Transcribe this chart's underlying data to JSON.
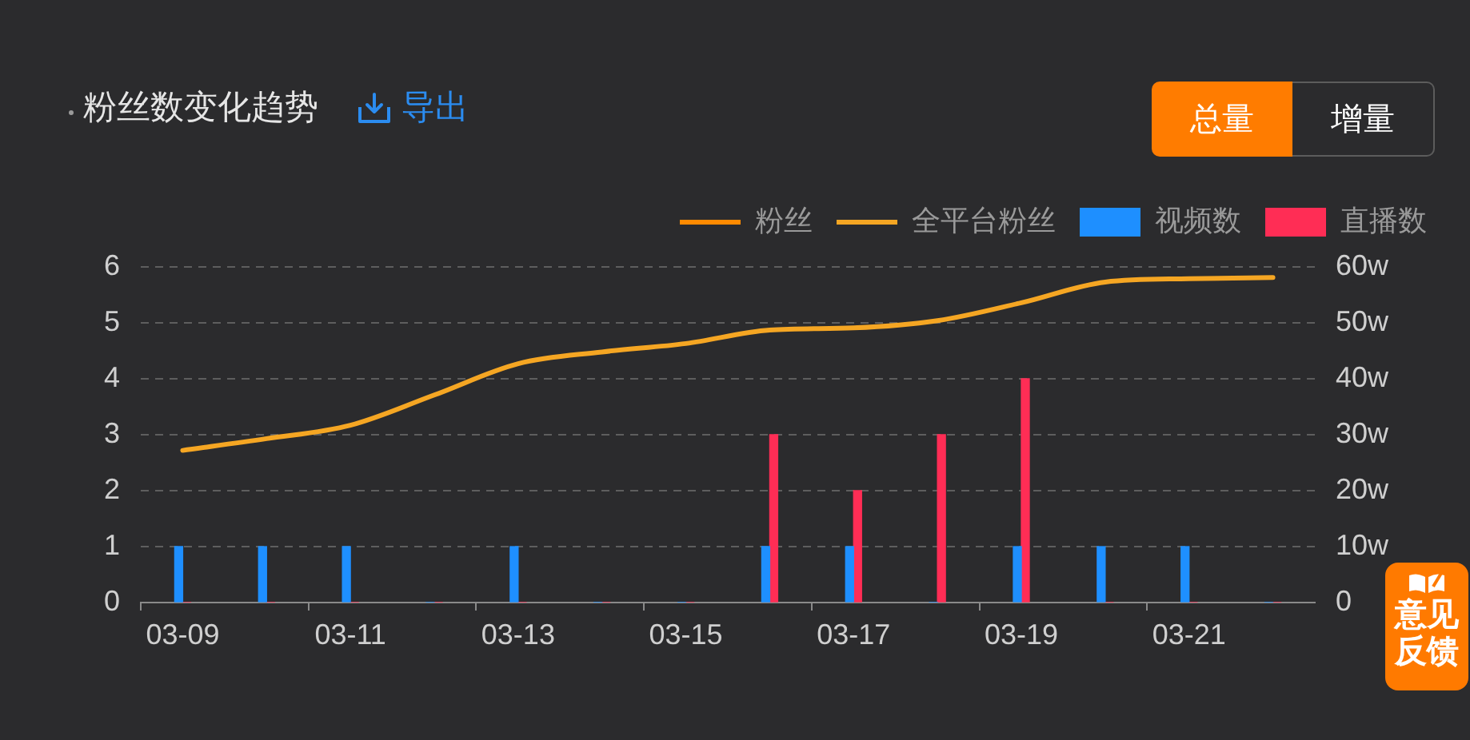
{
  "chart_data": {
    "type": "bar",
    "title": "粉丝数变化趋势",
    "categories": [
      "03-09",
      null,
      "03-11",
      null,
      "03-13",
      null,
      "03-15",
      null,
      "03-17",
      null,
      "03-19",
      null,
      "03-21",
      null
    ],
    "series": [
      {
        "name": "粉丝",
        "type": "line",
        "axis": "y2",
        "color": "#ff8a00",
        "values": [
          null,
          null,
          null,
          null,
          null,
          null,
          null,
          null,
          null,
          null,
          null,
          null,
          null,
          null
        ]
      },
      {
        "name": "全平台粉丝",
        "type": "line",
        "axis": "y2",
        "color": "#f5a623",
        "values": [
          27.2,
          29.3,
          31.7,
          37.1,
          42.7,
          44.8,
          46.3,
          48.7,
          49.1,
          50.4,
          53.6,
          57.3,
          57.9,
          58.1
        ]
      },
      {
        "name": "视频数",
        "color": "#1e8fff",
        "values": [
          1,
          1,
          1,
          0,
          1,
          0,
          0,
          1,
          1,
          0,
          1,
          1,
          1,
          0
        ]
      },
      {
        "name": "直播数",
        "color": "#ff2d55",
        "values": [
          0,
          0,
          0,
          0,
          0,
          0,
          0,
          3,
          2,
          3,
          4,
          0,
          0,
          0
        ]
      }
    ],
    "ylim": [
      0,
      6
    ],
    "yticks": [
      0,
      1,
      2,
      3,
      4,
      5,
      6
    ],
    "y2lim": [
      0,
      60
    ],
    "y2ticks": [
      0,
      {
        "value": 10,
        "label": "10w"
      },
      {
        "value": 20,
        "label": "20w"
      },
      {
        "value": 30,
        "label": "30w"
      },
      {
        "value": 40,
        "label": "40w"
      },
      {
        "value": 50,
        "label": "50w"
      },
      {
        "value": 60,
        "label": "60w"
      }
    ],
    "grid": "y",
    "legend": "top right",
    "annotations": [
      "导出",
      "总量",
      "增量",
      "意见反馈"
    ]
  }
}
